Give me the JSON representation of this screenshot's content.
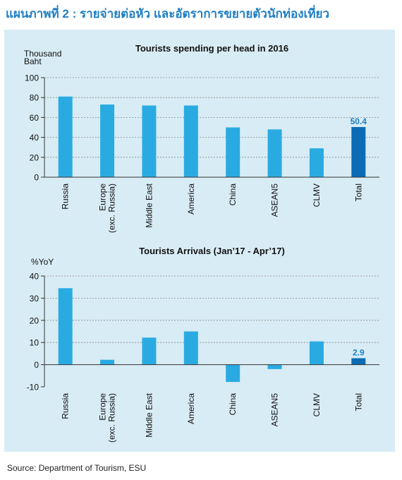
{
  "figure_title": "แผนภาพที่ 2 : รายจ่ายต่อหัว และอัตราการขยายตัวนักท่องเที่ยว",
  "source": "Source: Department of Tourism, ESU",
  "colors": {
    "bar": "#29abe2",
    "highlight": "#0b6bb5",
    "panel_bg": "#d8ecf5",
    "title": "#1f7fc4",
    "label_highlight": "#1f7fc4"
  },
  "chart_data": [
    {
      "type": "bar",
      "title": "Tourists spending per head in 2016",
      "ylabel": "Thousand Baht",
      "categories": [
        "Russia",
        "Europe (exc. Russia)",
        "Middle East",
        "America",
        "China",
        "ASEAN5",
        "CLMV",
        "Total"
      ],
      "tick_labels": [
        [
          "Russia"
        ],
        [
          "Europe",
          "(exc. Russia)"
        ],
        [
          "Middle East"
        ],
        [
          "America"
        ],
        [
          "China"
        ],
        [
          "ASEAN5"
        ],
        [
          "CLMV"
        ],
        [
          "Total"
        ]
      ],
      "values": [
        81,
        73,
        72,
        72,
        50,
        48,
        29,
        50.4
      ],
      "highlight_index": 7,
      "data_labels": {
        "7": "50.4"
      },
      "ylim": [
        0,
        100
      ],
      "yticks": [
        0,
        20,
        40,
        60,
        80,
        100
      ],
      "grid": true
    },
    {
      "type": "bar",
      "title": "Tourists Arrivals (Jan’17 - Apr’17)",
      "ylabel": "%YoY",
      "categories": [
        "Russia",
        "Europe (exc. Russia)",
        "Middle East",
        "America",
        "China",
        "ASEAN5",
        "CLMV",
        "Total"
      ],
      "tick_labels": [
        [
          "Russia"
        ],
        [
          "Europe",
          "(exc. Russia)"
        ],
        [
          "Middle East"
        ],
        [
          "America"
        ],
        [
          "China"
        ],
        [
          "ASEAN5"
        ],
        [
          "CLMV"
        ],
        [
          "Total"
        ]
      ],
      "values": [
        34.5,
        2.2,
        12.2,
        15,
        -7.8,
        -2,
        10.5,
        2.9
      ],
      "highlight_index": 7,
      "data_labels": {
        "7": "2.9"
      },
      "ylim": [
        -10,
        40
      ],
      "yticks": [
        -10,
        0,
        10,
        20,
        30,
        40
      ],
      "grid": true
    }
  ]
}
